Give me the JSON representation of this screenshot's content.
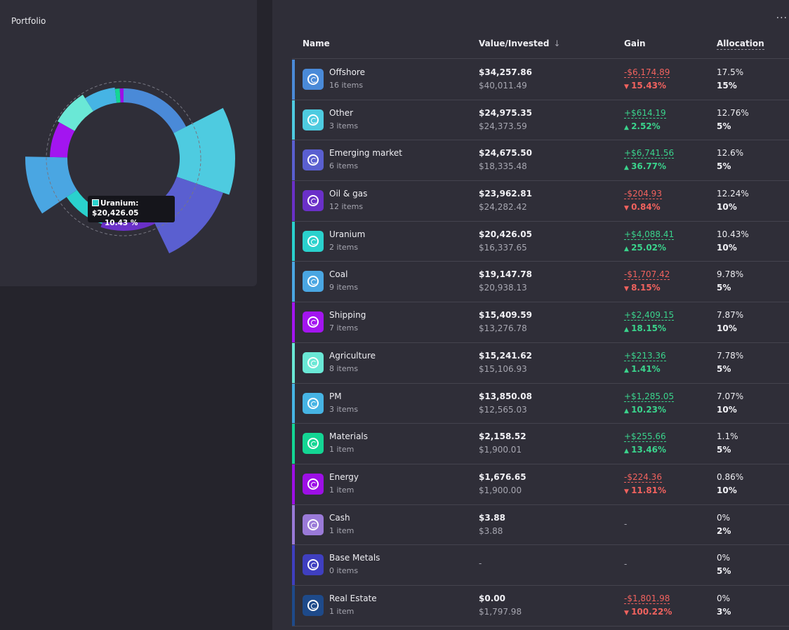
{
  "portfolio": {
    "title": "Portfolio"
  },
  "tooltip": {
    "label": "Uranium: $20,426.05",
    "percent": "10.43 %",
    "color": "#2ad1cd"
  },
  "header": {
    "name": "Name",
    "value": "Value/Invested",
    "gain": "Gain",
    "allocation": "Allocation",
    "sort_icon": "↓",
    "more_icon": "···"
  },
  "rows": [
    {
      "name": "Offshore",
      "items": "16 items",
      "value": "$34,257.86",
      "invested": "$40,011.49",
      "gain": "-$6,174.89",
      "gain_pct": "15.43%",
      "dir": "neg",
      "alloc": "17.5%",
      "target": "15%",
      "color": "#4a8ad8"
    },
    {
      "name": "Other",
      "items": "3 items",
      "value": "$24,975.35",
      "invested": "$24,373.59",
      "gain": "+$614.19",
      "gain_pct": "2.52%",
      "dir": "pos",
      "alloc": "12.76%",
      "target": "5%",
      "color": "#4ecbe0"
    },
    {
      "name": "Emerging market",
      "items": "6 items",
      "value": "$24,675.50",
      "invested": "$18,335.48",
      "gain": "+$6,741.56",
      "gain_pct": "36.77%",
      "dir": "pos",
      "alloc": "12.6%",
      "target": "5%",
      "color": "#5a5fd0"
    },
    {
      "name": "Oil & gas",
      "items": "12 items",
      "value": "$23,962.81",
      "invested": "$24,282.42",
      "gain": "-$204.93",
      "gain_pct": "0.84%",
      "dir": "neg",
      "alloc": "12.24%",
      "target": "10%",
      "color": "#6a30c8"
    },
    {
      "name": "Uranium",
      "items": "2 items",
      "value": "$20,426.05",
      "invested": "$16,337.65",
      "gain": "+$4,088.41",
      "gain_pct": "25.02%",
      "dir": "pos",
      "alloc": "10.43%",
      "target": "10%",
      "color": "#2ad1cd"
    },
    {
      "name": "Coal",
      "items": "9 items",
      "value": "$19,147.78",
      "invested": "$20,938.13",
      "gain": "-$1,707.42",
      "gain_pct": "8.15%",
      "dir": "neg",
      "alloc": "9.78%",
      "target": "5%",
      "color": "#4aa6e2"
    },
    {
      "name": "Shipping",
      "items": "7 items",
      "value": "$15,409.59",
      "invested": "$13,276.78",
      "gain": "+$2,409.15",
      "gain_pct": "18.15%",
      "dir": "pos",
      "alloc": "7.87%",
      "target": "10%",
      "color": "#a315f0"
    },
    {
      "name": "Agriculture",
      "items": "8 items",
      "value": "$15,241.62",
      "invested": "$15,106.93",
      "gain": "+$213.36",
      "gain_pct": "1.41%",
      "dir": "pos",
      "alloc": "7.78%",
      "target": "5%",
      "color": "#6ae8d6"
    },
    {
      "name": "PM",
      "items": "3 items",
      "value": "$13,850.08",
      "invested": "$12,565.03",
      "gain": "+$1,285.05",
      "gain_pct": "10.23%",
      "dir": "pos",
      "alloc": "7.07%",
      "target": "10%",
      "color": "#46b4e4"
    },
    {
      "name": "Materials",
      "items": "1 item",
      "value": "$2,158.52",
      "invested": "$1,900.01",
      "gain": "+$255.66",
      "gain_pct": "13.46%",
      "dir": "pos",
      "alloc": "1.1%",
      "target": "5%",
      "color": "#14d694"
    },
    {
      "name": "Energy",
      "items": "1 item",
      "value": "$1,676.65",
      "invested": "$1,900.00",
      "gain": "-$224.36",
      "gain_pct": "11.81%",
      "dir": "neg",
      "alloc": "0.86%",
      "target": "10%",
      "color": "#9d0fe6"
    },
    {
      "name": "Cash",
      "items": "1 item",
      "value": "$3.88",
      "invested": "$3.88",
      "gain": "-",
      "gain_pct": "",
      "dir": "none",
      "alloc": "0%",
      "target": "2%",
      "color": "#9a7ad8"
    },
    {
      "name": "Base Metals",
      "items": "0 items",
      "value": "-",
      "invested": "",
      "gain": "-",
      "gain_pct": "",
      "dir": "none",
      "alloc": "0%",
      "target": "5%",
      "color": "#3f3fc0"
    },
    {
      "name": "Real Estate",
      "items": "1 item",
      "value": "$0.00",
      "invested": "$1,797.98",
      "gain": "-$1,801.98",
      "gain_pct": "100.22%",
      "dir": "neg",
      "alloc": "0%",
      "target": "3%",
      "color": "#1e4a8a"
    }
  ]
}
